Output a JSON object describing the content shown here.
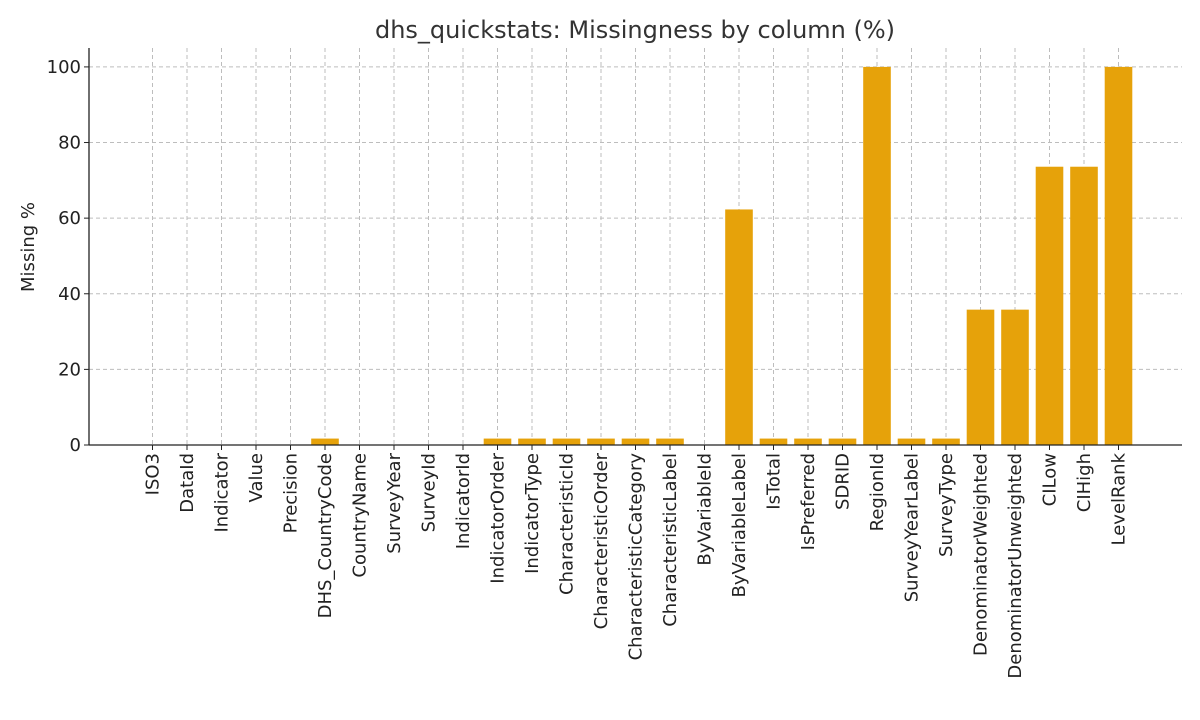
{
  "chart_data": {
    "type": "bar",
    "title": "dhs_quickstats: Missingness by column (%)",
    "xlabel": "",
    "ylabel": "Missing %",
    "ylim": [
      0,
      105
    ],
    "yticks": [
      0,
      20,
      40,
      60,
      80,
      100
    ],
    "grid": true,
    "bar_color": "#E6A20A",
    "categories": [
      "ISO3",
      "DataId",
      "Indicator",
      "Value",
      "Precision",
      "DHS_CountryCode",
      "CountryName",
      "SurveyYear",
      "SurveyId",
      "IndicatorId",
      "IndicatorOrder",
      "IndicatorType",
      "CharacteristicId",
      "CharacteristicOrder",
      "CharacteristicCategory",
      "CharacteristicLabel",
      "ByVariableId",
      "ByVariableLabel",
      "IsTotal",
      "IsPreferred",
      "SDRID",
      "RegionId",
      "SurveyYearLabel",
      "SurveyType",
      "DenominatorWeighted",
      "DenominatorUnweighted",
      "CILow",
      "CIHigh",
      "LevelRank"
    ],
    "values": [
      0,
      0,
      0,
      0,
      0,
      1.7,
      0,
      0,
      0,
      0,
      1.7,
      1.7,
      1.7,
      1.7,
      1.7,
      1.7,
      0,
      62.3,
      1.7,
      1.7,
      1.7,
      100,
      1.7,
      1.7,
      35.8,
      35.8,
      73.6,
      73.6,
      100
    ]
  }
}
